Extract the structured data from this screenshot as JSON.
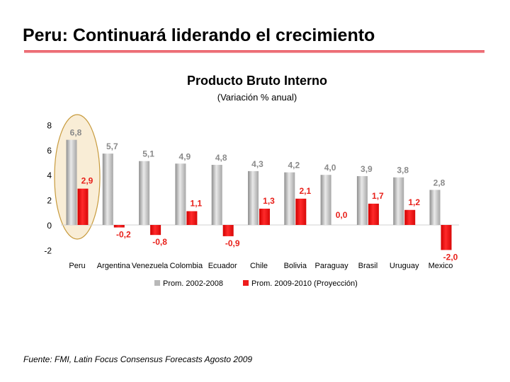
{
  "slide": {
    "title": "Peru: Continuará liderando el crecimiento",
    "source": "Fuente: FMI, Latin Focus Consensus Forecasts Agosto 2009"
  },
  "colors": {
    "series_gray": "#b8b8b8",
    "series_red": "#ee1c1c",
    "label_gray": "#8a8a8a",
    "label_red": "#e8201a",
    "accent_rule": "#e8434f",
    "highlight_fill": "#f9edd6",
    "highlight_stroke": "#c79a3c"
  },
  "chart_data": {
    "type": "bar",
    "title": "Producto Bruto Interno",
    "subtitle": "(Variación % anual)",
    "categories": [
      "Peru",
      "Argentina",
      "Venezuela",
      "Colombia",
      "Ecuador",
      "Chile",
      "Bolivia",
      "Paraguay",
      "Brasil",
      "Uruguay",
      "Mexico"
    ],
    "series": [
      {
        "name": "Prom. 2002-2008",
        "values": [
          6.8,
          5.7,
          5.1,
          4.9,
          4.8,
          4.3,
          4.2,
          4.0,
          3.9,
          3.8,
          2.8
        ],
        "labels": [
          "6,8",
          "5,7",
          "5,1",
          "4,9",
          "4,8",
          "4,3",
          "4,2",
          "4,0",
          "3,9",
          "3,8",
          "2,8"
        ]
      },
      {
        "name": "Prom. 2009-2010 (Proyección)",
        "values": [
          2.9,
          -0.2,
          -0.8,
          1.1,
          -0.9,
          1.3,
          2.1,
          0.0,
          1.7,
          1.2,
          -2.0
        ],
        "labels": [
          "2,9",
          "-0,2",
          "-0,8",
          "1,1",
          "-0,9",
          "1,3",
          "2,1",
          "0,0",
          "1,7",
          "1,2",
          "-2,0"
        ]
      }
    ],
    "y_ticks": [
      -2,
      0,
      2,
      4,
      6,
      8
    ],
    "ylim": [
      -2,
      8
    ],
    "highlight_category": "Peru",
    "legend_position": "bottom"
  }
}
